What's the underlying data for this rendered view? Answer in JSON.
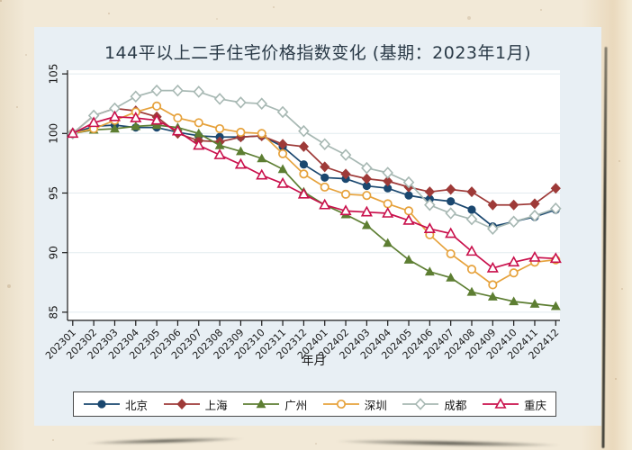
{
  "chart": {
    "title": "144平以上二手住宅价格指数变化 (基期：2023年1月)",
    "xlabel": "年月",
    "panel_bg": "#e8eff4",
    "plot_bg": "#ffffff",
    "gridline_color": "#e2ebef",
    "axis_color": "#1a1a1a"
  },
  "chart_data": {
    "type": "line",
    "title": "144平以上二手住宅价格指数变化 (基期：2023年1月)",
    "xlabel": "年月",
    "ylabel": "",
    "ylim": [
      85,
      105
    ],
    "yticks": [
      85,
      90,
      95,
      100,
      105
    ],
    "grid": true,
    "legend_position": "bottom",
    "categories": [
      "202301",
      "202302",
      "202303",
      "202304",
      "202305",
      "202306",
      "202307",
      "202308",
      "202309",
      "202310",
      "202311",
      "202312",
      "202401",
      "202402",
      "202403",
      "202404",
      "202405",
      "202406",
      "202407",
      "202408",
      "202409",
      "202410",
      "202411",
      "202412"
    ],
    "series": [
      {
        "name": "北京",
        "marker": "circle-filled",
        "color": "#1a476f",
        "values": [
          100,
          100.6,
          100.7,
          100.5,
          100.5,
          100.1,
          99.8,
          99.7,
          99.7,
          99.8,
          98.9,
          97.4,
          96.3,
          96.2,
          95.6,
          95.4,
          94.8,
          94.5,
          94.3,
          93.6,
          92.2,
          92.6,
          93.0,
          93.6
        ]
      },
      {
        "name": "上海",
        "marker": "diamond-filled",
        "color": "#9e3a38",
        "values": [
          100,
          101.5,
          102.1,
          101.9,
          101.4,
          100.0,
          99.4,
          99.3,
          99.7,
          99.8,
          99.1,
          98.9,
          97.2,
          96.6,
          96.2,
          96.0,
          95.5,
          95.1,
          95.3,
          95.1,
          94.0,
          94.0,
          94.1,
          95.4
        ]
      },
      {
        "name": "广州",
        "marker": "triangle-filled",
        "color": "#5d7e32",
        "values": [
          100,
          100.3,
          100.4,
          100.6,
          100.7,
          100.5,
          100.0,
          99.0,
          98.5,
          97.9,
          97.0,
          95.1,
          94.0,
          93.2,
          92.3,
          90.8,
          89.4,
          88.4,
          87.9,
          86.7,
          86.3,
          85.9,
          85.7,
          85.5
        ]
      },
      {
        "name": "深圳",
        "marker": "circle-open",
        "color": "#e6a23c",
        "values": [
          100,
          100.4,
          101.1,
          101.8,
          102.3,
          101.3,
          100.9,
          100.4,
          100.1,
          100.0,
          98.3,
          96.6,
          95.5,
          94.9,
          94.8,
          94.1,
          93.5,
          91.5,
          89.9,
          88.6,
          87.3,
          88.3,
          89.2,
          89.4
        ]
      },
      {
        "name": "成都",
        "marker": "diamond-open",
        "color": "#a7b8b3",
        "values": [
          100,
          101.5,
          102.1,
          103.1,
          103.6,
          103.6,
          103.5,
          102.9,
          102.6,
          102.5,
          101.8,
          100.2,
          99.1,
          98.2,
          97.1,
          96.7,
          95.9,
          94.0,
          93.3,
          92.8,
          92.0,
          92.6,
          93.1,
          93.7
        ]
      },
      {
        "name": "重庆",
        "marker": "triangle-open",
        "color": "#c9104c",
        "values": [
          100,
          100.9,
          101.4,
          101.3,
          101.1,
          100.2,
          99.0,
          98.2,
          97.4,
          96.5,
          95.8,
          94.9,
          94.0,
          93.5,
          93.4,
          93.3,
          92.7,
          92.0,
          91.6,
          90.1,
          88.7,
          89.2,
          89.6,
          89.5
        ]
      }
    ]
  }
}
